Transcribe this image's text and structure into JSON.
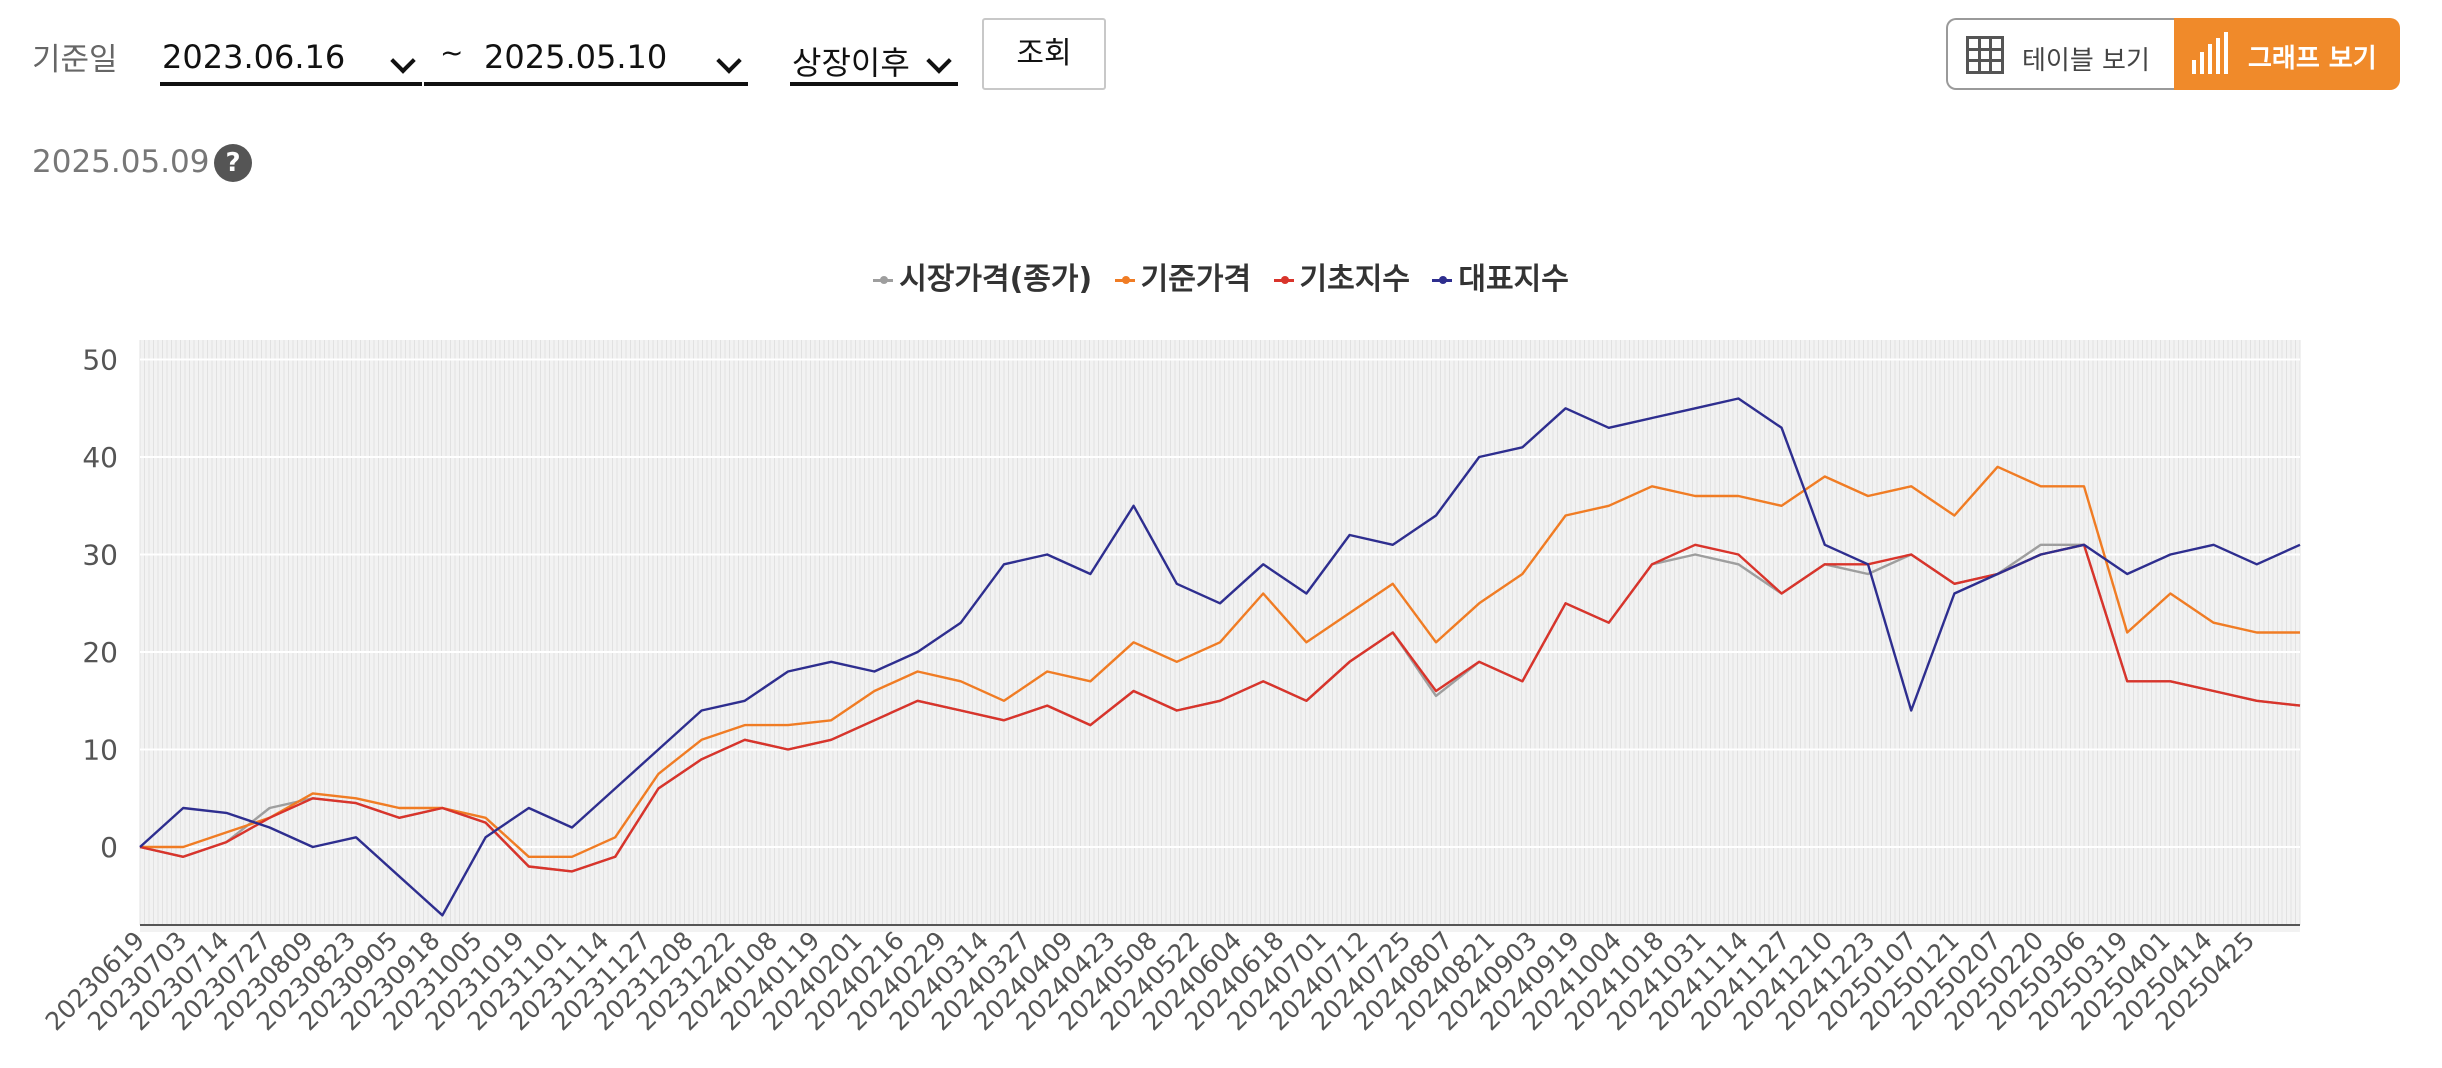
{
  "filters": {
    "base_date_label": "기준일",
    "start_date": "2023.06.16",
    "separator": "~",
    "end_date": "2025.05.10",
    "period": "상장이후",
    "search_label": "조회"
  },
  "view_toggle": {
    "table_label": "테이블 보기",
    "graph_label": "그래프 보기",
    "active": "graph"
  },
  "as_of_date": "2025.05.09",
  "help_text": "?",
  "colors": {
    "market": "#9e9e9e",
    "nav": "#f07c24",
    "base_index": "#d9342b",
    "rep_index": "#2e2e8f",
    "accent": "#f08a2a"
  },
  "chart_data": {
    "type": "line",
    "ylim": [
      -8,
      52
    ],
    "yticks": [
      0,
      10,
      20,
      30,
      40,
      50
    ],
    "grid": true,
    "legend": "top-center",
    "x_tick_labels": [
      "20230619",
      "20230703",
      "20230714",
      "20230727",
      "20230809",
      "20230823",
      "20230905",
      "20230918",
      "20231005",
      "20231019",
      "20231101",
      "20231114",
      "20231127",
      "20231208",
      "20231222",
      "20240108",
      "20240119",
      "20240201",
      "20240216",
      "20240229",
      "20240314",
      "20240327",
      "20240409",
      "20240423",
      "20240508",
      "20240522",
      "20240604",
      "20240618",
      "20240701",
      "20240712",
      "20240725",
      "20240807",
      "20240821",
      "20240903",
      "20240919",
      "20241004",
      "20241018",
      "20241031",
      "20241114",
      "20241127",
      "20241210",
      "20241223",
      "20250107",
      "20250121",
      "20250207",
      "20250220",
      "20250306",
      "20250319",
      "20250401",
      "20250414",
      "20250425"
    ],
    "series": [
      {
        "name": "시장가격(종가)",
        "color": "#9e9e9e",
        "values": [
          0,
          -1,
          0.5,
          4,
          5,
          4.5,
          3,
          4,
          2.5,
          -2,
          -2.5,
          -1,
          6,
          9,
          11,
          10,
          11,
          13,
          15,
          14,
          13,
          14.5,
          12.5,
          16,
          14,
          15,
          17,
          15,
          19,
          22,
          15.5,
          19,
          17,
          25,
          23,
          29,
          30,
          29,
          26,
          29,
          28,
          30,
          27,
          28,
          31,
          31,
          17,
          17,
          16,
          15,
          14.5
        ]
      },
      {
        "name": "기준가격",
        "color": "#f07c24",
        "values": [
          0,
          0,
          1.5,
          3,
          5.5,
          5,
          4,
          4,
          3,
          -1,
          -1,
          1,
          7.5,
          11,
          12.5,
          12.5,
          13,
          16,
          18,
          17,
          15,
          18,
          17,
          21,
          19,
          21,
          26,
          21,
          24,
          27,
          21,
          25,
          28,
          34,
          35,
          37,
          36,
          36,
          35,
          38,
          36,
          37,
          34,
          39,
          37,
          37,
          22,
          26,
          23,
          22,
          22
        ]
      },
      {
        "name": "기초지수",
        "color": "#d9342b",
        "values": [
          0,
          -1,
          0.5,
          3,
          5,
          4.5,
          3,
          4,
          2.5,
          -2,
          -2.5,
          -1,
          6,
          9,
          11,
          10,
          11,
          13,
          15,
          14,
          13,
          14.5,
          12.5,
          16,
          14,
          15,
          17,
          15,
          19,
          22,
          16,
          19,
          17,
          25,
          23,
          29,
          31,
          30,
          26,
          29,
          29,
          30,
          27,
          28,
          30,
          31,
          17,
          17,
          16,
          15,
          14.5
        ]
      },
      {
        "name": "대표지수",
        "color": "#2e2e8f",
        "values": [
          0,
          4,
          3.5,
          2,
          0,
          1,
          -3,
          -7,
          1,
          4,
          2,
          6,
          10,
          14,
          15,
          18,
          19,
          18,
          20,
          23,
          29,
          30,
          28,
          35,
          27,
          25,
          29,
          26,
          32,
          31,
          34,
          40,
          41,
          45,
          43,
          44,
          45,
          46,
          43,
          31,
          29,
          14,
          26,
          28,
          30,
          31,
          28,
          30,
          31,
          29,
          31
        ]
      }
    ]
  }
}
